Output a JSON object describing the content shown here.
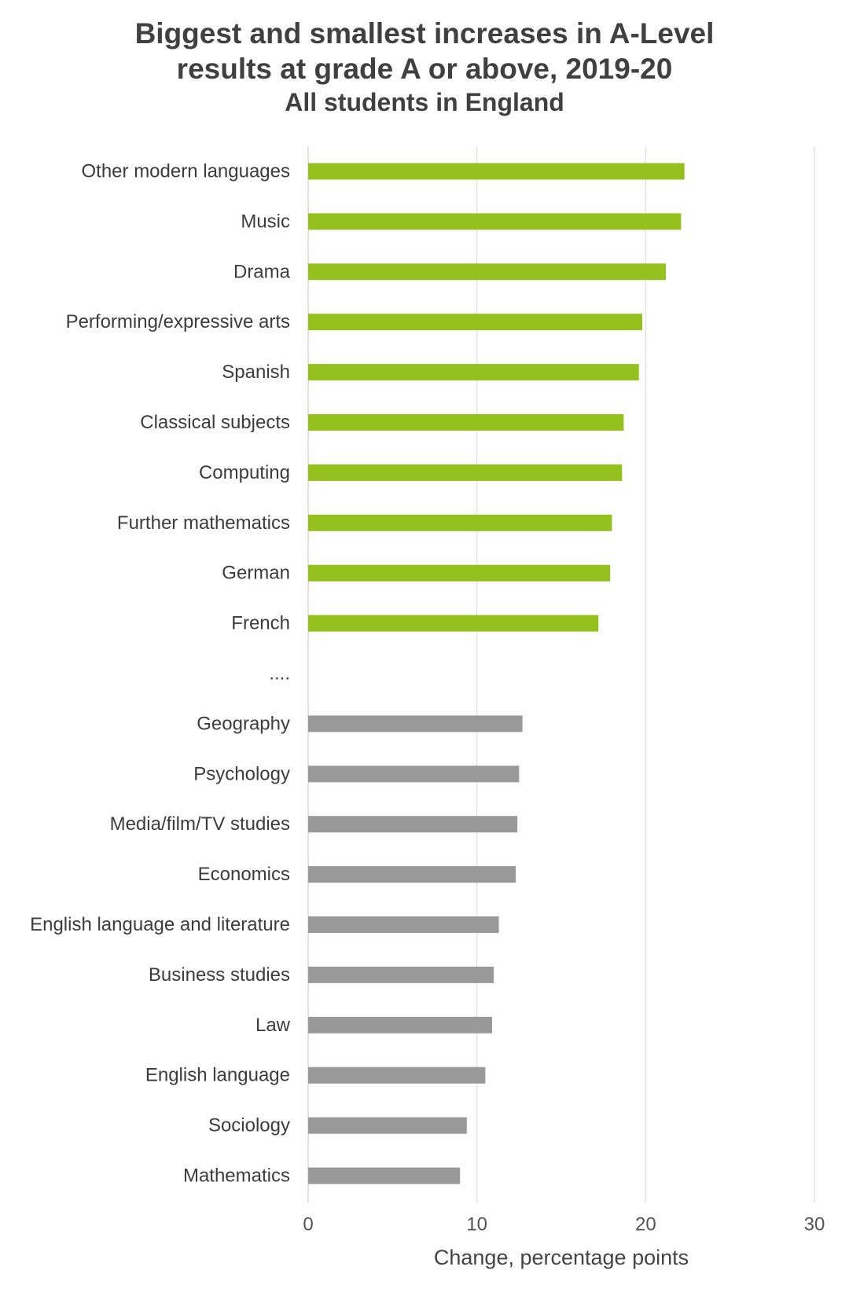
{
  "chart_data": {
    "type": "bar",
    "orientation": "horizontal",
    "title": [
      "Biggest and smallest increases in A-Level",
      "results at grade A or above, 2019-20"
    ],
    "subtitle": "All students in England",
    "xlabel": "Change, percentage points",
    "xlim": [
      0,
      30
    ],
    "xticks": [
      0,
      10,
      20,
      30
    ],
    "grid": true,
    "separator": "....",
    "groups": [
      {
        "color": "#95c11f",
        "categories": [
          "Other modern languages",
          "Music",
          "Drama",
          "Performing/expressive arts",
          "Spanish",
          "Classical subjects",
          "Computing",
          "Further mathematics",
          "German",
          "French"
        ],
        "values": [
          22.3,
          22.1,
          21.2,
          19.8,
          19.6,
          18.7,
          18.6,
          18.0,
          17.9,
          17.2
        ]
      },
      {
        "color": "#999999",
        "categories": [
          "Geography",
          "Psychology",
          "Media/film/TV studies",
          "Economics",
          "English language and literature",
          "Business studies",
          "Law",
          "English language",
          "Sociology",
          "Mathematics"
        ],
        "values": [
          12.7,
          12.5,
          12.4,
          12.3,
          11.3,
          11.0,
          10.9,
          10.5,
          9.4,
          9.0
        ]
      }
    ]
  }
}
